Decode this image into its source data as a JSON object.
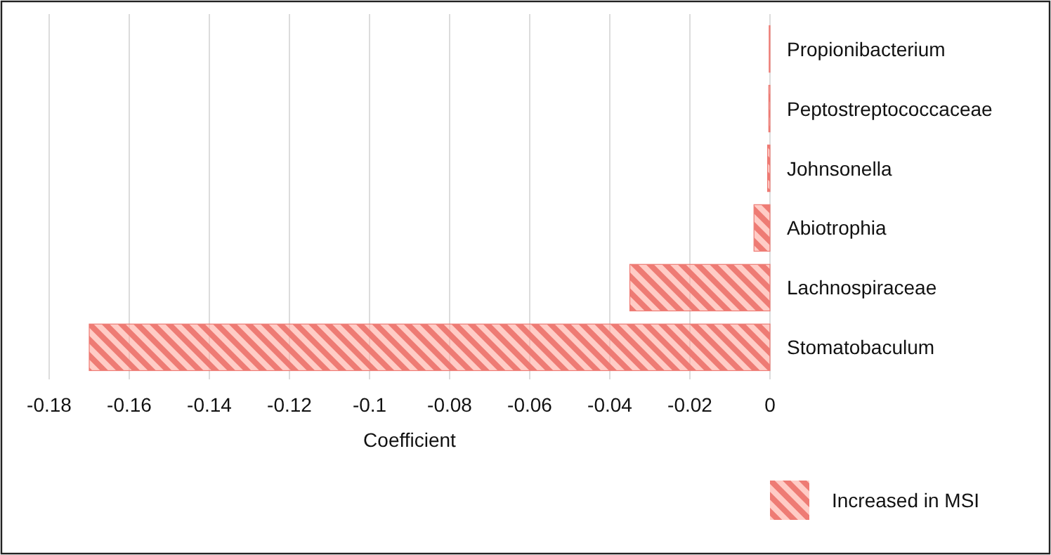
{
  "chart_data": {
    "type": "bar",
    "orientation": "horizontal",
    "xlabel": "Coefficient",
    "categories": [
      "Propionibacterium",
      "Peptostreptococcaceae",
      "Johnsonella",
      "Abiotrophia",
      "Lachnospiraceae",
      "Stomatobaculum"
    ],
    "series": [
      {
        "name": "Increased in MSI",
        "color": "#ee7b74",
        "values": [
          -0.0002,
          -0.0003,
          -0.0006,
          -0.004,
          -0.035,
          -0.17
        ]
      }
    ],
    "xlim": [
      -0.18,
      0
    ],
    "xticks": [
      -0.18,
      -0.16,
      -0.14,
      -0.12,
      -0.1,
      -0.08,
      -0.06,
      -0.04,
      -0.02,
      0
    ],
    "grid": "x",
    "legend": "bottom right"
  }
}
